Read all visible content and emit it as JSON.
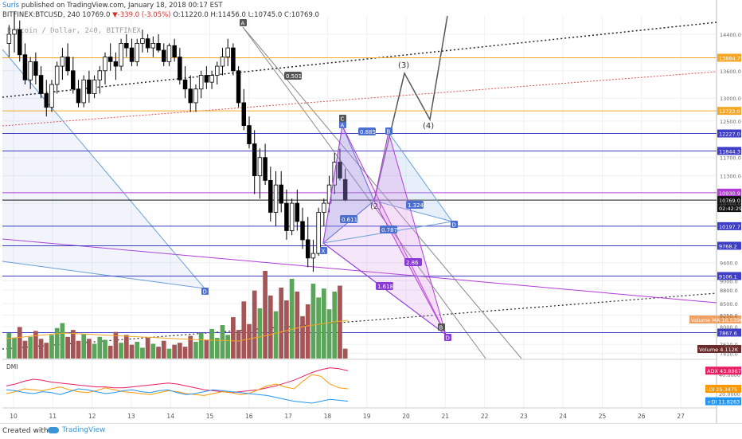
{
  "header": {
    "user": "Suris",
    "published": " published on TradingView.com, January 18, 2018 00:17 EST",
    "symbol": "BITFINEX:BTCUSD, 240",
    "last": "10769.0",
    "change": "▼-339.0 (-3.05%)",
    "ohlc": "O:11220.0 H:11456.0 L:10745.0 C:10769.0"
  },
  "watermark": "Bitcoin / Dollar, 240, BITFINEX",
  "footer": {
    "created": "Created with",
    "brand": "TradingView"
  },
  "chart_data": {
    "type": "candlestick",
    "symbol": "BITFINEX:BTCUSD",
    "timeframe": "240",
    "x_tick_labels": [
      "10",
      "11",
      "12",
      "13",
      "14",
      "15",
      "16",
      "17",
      "18",
      "19",
      "20",
      "21",
      "22",
      "23",
      "24",
      "25",
      "26",
      "27"
    ],
    "y_tick_labels": [
      "14400.0",
      "13600.0",
      "13000.0",
      "12500.0",
      "11700.0",
      "11300.0",
      "10700.0",
      "9400.0",
      "9000.0",
      "8800.0",
      "8500.0",
      "8250.0",
      "8000.0",
      "7610.0",
      "7410.0"
    ],
    "price_ylim": [
      7300,
      14800
    ],
    "horizontal_levels": [
      {
        "label": "13884.7",
        "value": 13884.7,
        "color": "#f5a623"
      },
      {
        "label": "12722.0",
        "value": 12722.0,
        "color": "#f5a623"
      },
      {
        "label": "12227.0",
        "value": 12227.0,
        "color": "#3d3dc8"
      },
      {
        "label": "11844.3",
        "value": 11844.3,
        "color": "#3d3dc8"
      },
      {
        "label": "10930.9",
        "value": 10930.9,
        "color": "#b23bd6"
      },
      {
        "label": "10769.0",
        "value": 10769.0,
        "color": "#111111"
      },
      {
        "label": "10197.7",
        "value": 10197.7,
        "color": "#3d3dc8"
      },
      {
        "label": "9768.2",
        "value": 9768.2,
        "color": "#3d3dc8"
      },
      {
        "label": "9106.1",
        "value": 9106.1,
        "color": "#3d3dc8"
      },
      {
        "label": "7867.6",
        "value": 7867.6,
        "color": "#3d3dc8"
      }
    ],
    "countdown": "02:42:29",
    "candles_ohlc": [
      [
        14200,
        14600,
        13900,
        14400
      ],
      [
        14400,
        14900,
        14000,
        14500
      ],
      [
        14500,
        14700,
        13800,
        13950
      ],
      [
        13950,
        14200,
        13300,
        13400
      ],
      [
        13400,
        13900,
        13200,
        13800
      ],
      [
        13800,
        14000,
        13300,
        13500
      ],
      [
        13500,
        13700,
        13000,
        13100
      ],
      [
        13100,
        13400,
        12600,
        12800
      ],
      [
        12800,
        13400,
        12700,
        13300
      ],
      [
        13300,
        13800,
        13100,
        13700
      ],
      [
        13700,
        14100,
        13400,
        13900
      ],
      [
        13900,
        14200,
        13500,
        13600
      ],
      [
        13600,
        13900,
        13100,
        13200
      ],
      [
        13200,
        13400,
        12800,
        12900
      ],
      [
        12900,
        13500,
        12800,
        13400
      ],
      [
        13400,
        13600,
        12900,
        13100
      ],
      [
        13100,
        13500,
        13000,
        13400
      ],
      [
        13400,
        13700,
        13100,
        13600
      ],
      [
        13600,
        14000,
        13300,
        13900
      ],
      [
        13900,
        14200,
        13600,
        13800
      ],
      [
        13800,
        14000,
        13400,
        13700
      ],
      [
        13700,
        14300,
        13600,
        14200
      ],
      [
        14200,
        14400,
        13900,
        14100
      ],
      [
        14100,
        14300,
        13700,
        13800
      ],
      [
        13800,
        14300,
        13700,
        14200
      ],
      [
        14200,
        14500,
        14000,
        14300
      ],
      [
        14300,
        14400,
        14000,
        14100
      ],
      [
        14100,
        14350,
        13900,
        14200
      ],
      [
        14200,
        14400,
        14000,
        14050
      ],
      [
        14050,
        14200,
        13700,
        13800
      ],
      [
        13800,
        14200,
        13700,
        14150
      ],
      [
        14150,
        14300,
        13800,
        13900
      ],
      [
        13900,
        14100,
        13300,
        13400
      ],
      [
        13400,
        13700,
        13000,
        13200
      ],
      [
        13200,
        13500,
        12700,
        12900
      ],
      [
        12900,
        13300,
        12700,
        13200
      ],
      [
        13200,
        13600,
        13000,
        13500
      ],
      [
        13500,
        13700,
        13200,
        13350
      ],
      [
        13350,
        13600,
        13200,
        13500
      ],
      [
        13500,
        13800,
        13300,
        13700
      ],
      [
        13700,
        14100,
        13500,
        13900
      ],
      [
        13900,
        14300,
        13700,
        14100
      ],
      [
        14100,
        14200,
        13500,
        13600
      ],
      [
        13600,
        13700,
        12800,
        12900
      ],
      [
        12900,
        13200,
        12300,
        12400
      ],
      [
        12400,
        12600,
        11900,
        12000
      ],
      [
        12000,
        12300,
        10900,
        11300
      ],
      [
        11300,
        11900,
        10800,
        11700
      ],
      [
        11700,
        12000,
        11100,
        11200
      ],
      [
        11200,
        11500,
        10300,
        10500
      ],
      [
        10500,
        11400,
        10200,
        11100
      ],
      [
        11100,
        11400,
        10500,
        10700
      ],
      [
        10700,
        11000,
        9900,
        10100
      ],
      [
        10100,
        10800,
        10000,
        10700
      ],
      [
        10700,
        11000,
        10100,
        10300
      ],
      [
        10300,
        10600,
        9700,
        9900
      ],
      [
        9900,
        10400,
        9300,
        9500
      ],
      [
        9500,
        9900,
        9200,
        9600
      ],
      [
        9600,
        10600,
        9550,
        10500
      ],
      [
        10500,
        10800,
        10200,
        10700
      ],
      [
        10700,
        11300,
        10500,
        11100
      ],
      [
        11100,
        11800,
        10900,
        11600
      ],
      [
        11600,
        11900,
        11200,
        11250
      ],
      [
        11220,
        11456,
        10745,
        10769
      ]
    ],
    "volume_ma_label": "Volume MA",
    "volume_ma_value": "16.539K",
    "volume_label": "Volume",
    "volume_value": "4.112K",
    "volume": [
      2.6,
      2.1,
      3.2,
      1.8,
      2.2,
      2.8,
      2.0,
      1.6,
      2.4,
      3.1,
      3.6,
      2.2,
      2.9,
      1.8,
      2.5,
      2.0,
      1.5,
      2.2,
      1.9,
      1.3,
      2.7,
      1.6,
      2.4,
      1.4,
      1.7,
      1.1,
      2.1,
      1.5,
      1.2,
      1.8,
      1.0,
      1.4,
      1.6,
      1.2,
      2.3,
      1.7,
      2.6,
      1.9,
      3.0,
      2.1,
      3.4,
      2.4,
      4.2,
      2.9,
      5.8,
      3.5,
      6.9,
      5.1,
      8.9,
      6.4,
      4.8,
      7.2,
      5.9,
      8.1,
      6.8,
      4.3,
      5.5,
      7.6,
      6.2,
      7.1,
      5.0,
      6.8,
      7.4,
      1.0
    ],
    "dmi": {
      "label": "DMI",
      "adx_label": "ADX",
      "adx_value": "43.8867",
      "minus_di_label": "-DI",
      "minus_di_value": "25.3475",
      "plus_di_label": "+DI",
      "plus_di_value": "11.8263",
      "axis_ticks": [
        "40.0000",
        "20.0000"
      ],
      "adx": [
        28,
        30,
        33,
        35,
        34,
        32,
        31,
        30,
        29,
        28,
        27,
        27,
        26,
        26,
        27,
        28,
        29,
        30,
        31,
        30,
        28,
        26,
        24,
        23,
        22,
        21,
        22,
        23,
        24,
        26,
        28,
        31,
        34,
        38,
        42,
        45,
        47,
        46,
        44
      ],
      "minus_di": [
        20,
        22,
        25,
        24,
        23,
        25,
        27,
        24,
        22,
        21,
        23,
        26,
        24,
        22,
        21,
        20,
        19,
        21,
        23,
        22,
        20,
        19,
        18,
        20,
        22,
        21,
        19,
        20,
        24,
        28,
        30,
        27,
        25,
        33,
        40,
        38,
        30,
        26,
        25
      ],
      "plus_di": [
        24,
        23,
        21,
        20,
        22,
        21,
        19,
        22,
        25,
        24,
        22,
        20,
        21,
        23,
        24,
        22,
        21,
        23,
        24,
        21,
        19,
        20,
        22,
        24,
        23,
        22,
        21,
        20,
        19,
        18,
        16,
        14,
        12,
        11,
        10,
        12,
        14,
        13,
        12
      ]
    },
    "annotations": {
      "fib_labels": [
        "0.501",
        "0.885",
        "0.611",
        "0.787",
        "1.324",
        "2.86",
        "1.618"
      ],
      "wave_labels": [
        "(3)",
        "(4)",
        "(2)"
      ],
      "harmonic_point_labels": [
        "A",
        "C",
        "X",
        "D",
        "B",
        "D",
        "D",
        "A",
        "B"
      ]
    }
  }
}
